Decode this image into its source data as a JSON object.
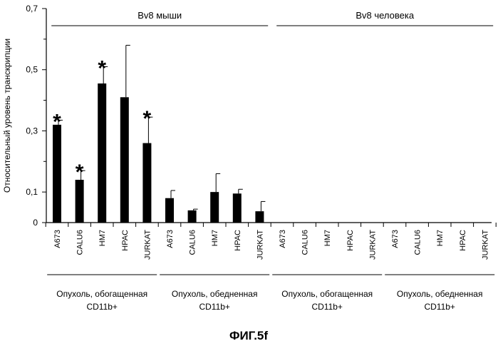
{
  "chart_data": {
    "type": "bar",
    "title": "",
    "xlabel": "",
    "ylabel": "Относительный уровень транскрипции",
    "ylim": [
      0,
      0.7
    ],
    "yticks": [
      0,
      0.1,
      0.3,
      0.5,
      0.7
    ],
    "ytick_labels": [
      "0",
      "0,1",
      "0,3",
      "0,5",
      "0,7"
    ],
    "categories": [
      "A673",
      "CALU6",
      "HM7",
      "HPAC",
      "JURKAT",
      "A673",
      "CALU6",
      "HM7",
      "HPAC",
      "JURKAT",
      "A673",
      "CALU6",
      "HM7",
      "HPAC",
      "JURKAT",
      "A673",
      "CALU6",
      "HM7",
      "HPAC",
      "JURKAT"
    ],
    "values": [
      0.32,
      0.14,
      0.455,
      0.41,
      0.26,
      0.08,
      0.04,
      0.1,
      0.095,
      0.037,
      0,
      0,
      0,
      0,
      0,
      0,
      0,
      0,
      0,
      0
    ],
    "errors": [
      0.015,
      0.03,
      0.055,
      0.17,
      0.085,
      0.025,
      0.004,
      0.06,
      0.014,
      0.032,
      0,
      0,
      0,
      0,
      0,
      0,
      0,
      0,
      0,
      0
    ],
    "significant": [
      true,
      true,
      true,
      false,
      true,
      false,
      false,
      false,
      false,
      false,
      false,
      false,
      false,
      false,
      false,
      false,
      false,
      false,
      false,
      false
    ],
    "significance_marker": "*",
    "species_groups": [
      {
        "label": "Bv8 мыши",
        "start": 0,
        "end": 9
      },
      {
        "label": "Bv8 человека",
        "start": 10,
        "end": 19
      }
    ],
    "tissue_groups": [
      {
        "line1": "Опухоль, обогащенная",
        "line2": "CD11b+",
        "start": 0,
        "end": 4
      },
      {
        "line1": "Опухоль, обедненная",
        "line2": "CD11b+",
        "start": 5,
        "end": 9
      },
      {
        "line1": "Опухоль, обогащенная",
        "line2": "CD11b+",
        "start": 10,
        "end": 14
      },
      {
        "line1": "Опухоль, обедненная",
        "line2": "CD11b+",
        "start": 15,
        "end": 19
      }
    ],
    "bar_color": "#000000",
    "grid": false,
    "legend": "none"
  },
  "figure_label": "ФИГ.5f"
}
